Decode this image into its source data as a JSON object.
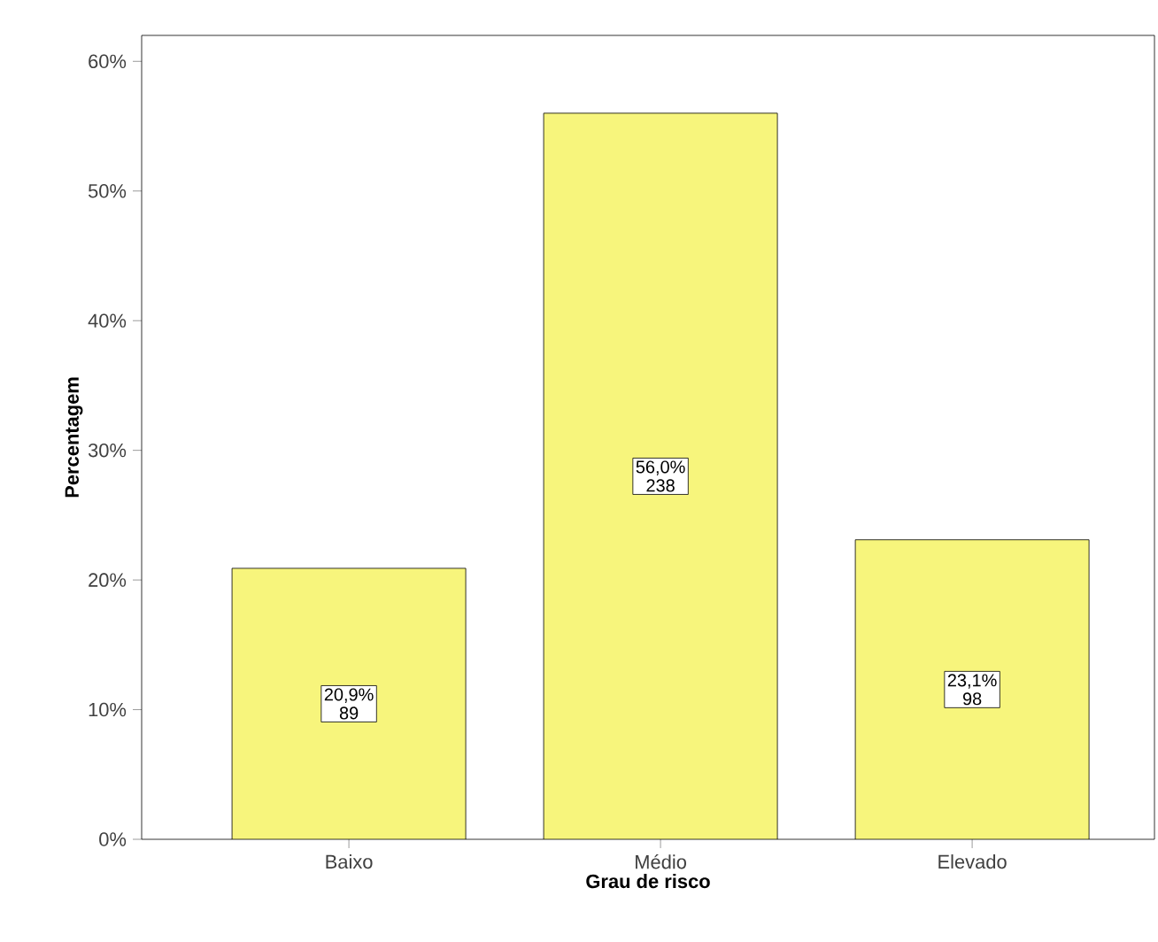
{
  "chart_data": {
    "type": "bar",
    "xlabel": "Grau de risco",
    "ylabel": "Percentagem",
    "categories": [
      "Baixo",
      "Médio",
      "Elevado"
    ],
    "values": [
      20.9,
      56.0,
      23.1
    ],
    "color": "#f7f57c",
    "value_labels": [
      "20,9%",
      "56,0%",
      "23,1%"
    ],
    "annotations": [
      "89",
      "238",
      "98"
    ],
    "ylim": [
      0,
      62
    ],
    "yticks": [
      {
        "value": 0,
        "label": "0%"
      },
      {
        "value": 10,
        "label": "10%"
      },
      {
        "value": 20,
        "label": "20%"
      },
      {
        "value": 30,
        "label": "30%"
      },
      {
        "value": 40,
        "label": "40%"
      },
      {
        "value": 50,
        "label": "50%"
      },
      {
        "value": 60,
        "label": "60%"
      }
    ],
    "grid": false
  }
}
